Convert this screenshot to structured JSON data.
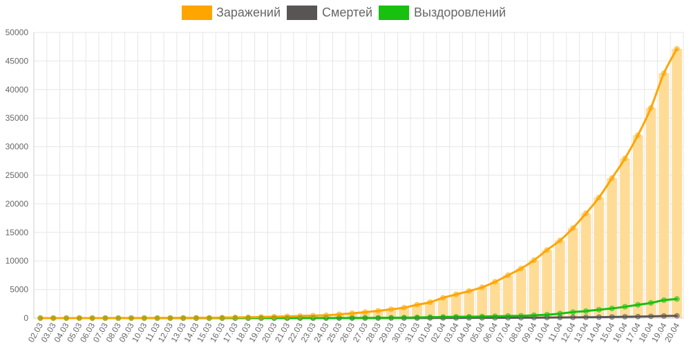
{
  "chart_data": {
    "type": "bar",
    "ylim": [
      0,
      50000
    ],
    "y_ticks": [
      0,
      5000,
      10000,
      15000,
      20000,
      25000,
      30000,
      35000,
      40000,
      45000,
      50000
    ],
    "grid": true,
    "legend_position": "top",
    "categories": [
      "02.03",
      "03.03",
      "04.03",
      "05.03",
      "06.03",
      "07.03",
      "08.03",
      "09.03",
      "10.03",
      "11.03",
      "12.03",
      "13.03",
      "14.03",
      "15.03",
      "16.03",
      "17.03",
      "18.03",
      "19.03",
      "20.03",
      "21.03",
      "22.03",
      "23.03",
      "24.03",
      "25.03",
      "26.03",
      "27.03",
      "28.03",
      "29.03",
      "30.03",
      "31.03",
      "01.04",
      "02.04",
      "03.04",
      "04.04",
      "05.04",
      "06.04",
      "07.04",
      "08.04",
      "09.04",
      "10.04",
      "11.04",
      "12.04",
      "13.04",
      "14.04",
      "15.04",
      "16.04",
      "17.04",
      "18.04",
      "19.04",
      "20.04"
    ],
    "series": [
      {
        "name": "Заражений",
        "color": "#ffa500",
        "bar_color": "#ffdc96",
        "values": [
          3,
          3,
          3,
          3,
          4,
          10,
          13,
          17,
          20,
          28,
          34,
          45,
          59,
          63,
          90,
          114,
          147,
          199,
          253,
          306,
          367,
          438,
          495,
          658,
          840,
          1036,
          1264,
          1534,
          1836,
          2337,
          2777,
          3548,
          4149,
          4731,
          5389,
          6343,
          7497,
          8672,
          10131,
          11917,
          13584,
          15770,
          18328,
          21102,
          24490,
          27938,
          32008,
          36793,
          42853,
          47121
        ]
      },
      {
        "name": "Смертей",
        "color": "#5a5555",
        "values": [
          0,
          0,
          0,
          0,
          0,
          0,
          0,
          0,
          0,
          0,
          0,
          0,
          0,
          0,
          0,
          0,
          0,
          1,
          1,
          1,
          1,
          1,
          2,
          3,
          3,
          4,
          5,
          8,
          10,
          17,
          19,
          26,
          32,
          39,
          43,
          52,
          58,
          64,
          81,
          94,
          106,
          121,
          145,
          165,
          198,
          232,
          262,
          304,
          355,
          399
        ]
      },
      {
        "name": "Выздоровлений",
        "color": "#18c00f",
        "values": [
          0,
          0,
          0,
          0,
          0,
          0,
          0,
          0,
          0,
          0,
          0,
          0,
          0,
          0,
          5,
          8,
          9,
          10,
          12,
          12,
          12,
          12,
          15,
          21,
          29,
          35,
          42,
          56,
          79,
          112,
          160,
          191,
          225,
          247,
          276,
          313,
          363,
          396,
          503,
          589,
          788,
          1046,
          1227,
          1470,
          1694,
          1986,
          2325,
          2658,
          3136,
          3345
        ]
      }
    ]
  }
}
